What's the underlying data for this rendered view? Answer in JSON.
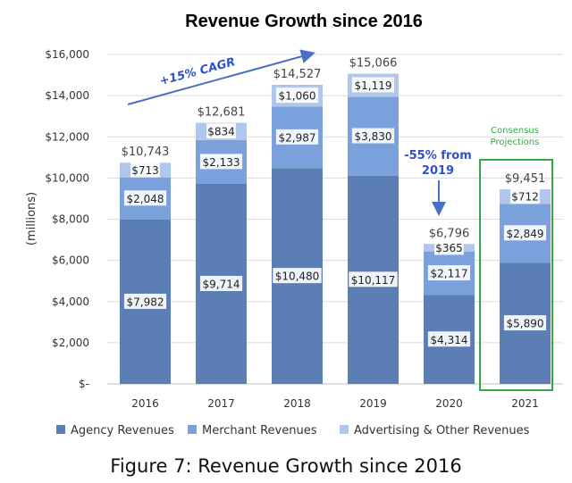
{
  "chart_data": {
    "type": "bar",
    "stacked": true,
    "title": "Revenue Growth since 2016",
    "xlabel": "",
    "ylabel": "(millions)",
    "ylim": [
      0,
      16000
    ],
    "ytick_values": [
      0,
      2000,
      4000,
      6000,
      8000,
      10000,
      12000,
      14000,
      16000
    ],
    "ytick_labels": [
      "$-",
      "$2,000",
      "$4,000",
      "$6,000",
      "$8,000",
      "$10,000",
      "$12,000",
      "$14,000",
      "$16,000"
    ],
    "grid": true,
    "legend_position": "bottom",
    "categories": [
      "2016",
      "2017",
      "2018",
      "2019",
      "2020",
      "2021"
    ],
    "series": [
      {
        "name": "Agency Revenues",
        "color": "#5b7fb5",
        "values": [
          7982,
          9714,
          10480,
          10117,
          4314,
          5890
        ],
        "labels": [
          "$7,982",
          "$9,714",
          "$10,480",
          "$10,117",
          "$4,314",
          "$5,890"
        ]
      },
      {
        "name": "Merchant Revenues",
        "color": "#7aa1db",
        "values": [
          2048,
          2133,
          2987,
          3830,
          2117,
          2849
        ],
        "labels": [
          "$2,048",
          "$2,133",
          "$2,987",
          "$3,830",
          "$2,117",
          "$2,849"
        ]
      },
      {
        "name": "Advertising & Other Revenues",
        "color": "#b0c6ea",
        "values": [
          713,
          834,
          1060,
          1119,
          365,
          712
        ],
        "labels": [
          "$713",
          "$834",
          "$1,060",
          "$1,119",
          "$365",
          "$712"
        ]
      }
    ],
    "totals": [
      10743,
      12681,
      14527,
      15066,
      6796,
      9451
    ],
    "total_labels": [
      "$10,743",
      "$12,681",
      "$14,527",
      "$15,066",
      "$6,796",
      "$9,451"
    ],
    "annotations": {
      "cagr_text": "+15% CAGR",
      "drop_line1": "-55% from",
      "drop_line2": "2019",
      "consensus_line1": "Consensus",
      "consensus_line2": "Projections"
    },
    "colors": {
      "annotation_blue": "#2f51c9",
      "arrow_blue": "#4a6fc4",
      "consensus_green": "#36a845"
    }
  },
  "caption": "Figure 7: Revenue Growth since 2016"
}
